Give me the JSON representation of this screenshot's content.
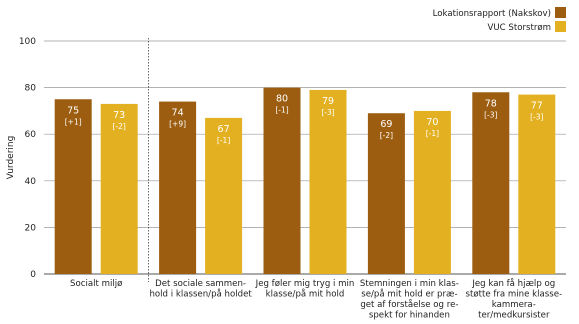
{
  "chart_data": {
    "type": "bar",
    "ylabel": "Vurdering",
    "ylim": [
      0,
      100
    ],
    "yticks": [
      0,
      20,
      40,
      60,
      80,
      100
    ],
    "categories": [
      [
        "Socialt miljø"
      ],
      [
        "Det sociale sammen-",
        "hold i klassen/på holdet"
      ],
      [
        "Jeg føler mig tryg i min",
        "klasse/på mit hold"
      ],
      [
        "Stemningen i min klas-",
        "se/på mit hold er præ-",
        "get af forståelse og re-",
        "spekt for hinanden"
      ],
      [
        "Jeg kan få hjælp og",
        "støtte fra mine klasse-",
        "kammera-",
        "ter/medkursister"
      ]
    ],
    "series": [
      {
        "name": "Lokationsrapport (Nakskov)",
        "color": "#9c5d10",
        "values": [
          75,
          74,
          80,
          69,
          78
        ],
        "deltas": [
          "[+1]",
          "[+9]",
          "[-1]",
          "[-2]",
          "[-3]"
        ]
      },
      {
        "name": "VUC Storstrøm",
        "color": "#e3b021",
        "values": [
          73,
          67,
          79,
          70,
          77
        ],
        "deltas": [
          "[-2]",
          "[-1]",
          "[-3]",
          "[-1]",
          "[-3]"
        ]
      }
    ],
    "grid": true,
    "legend_position": "top-right",
    "separator_after_category": 0
  }
}
